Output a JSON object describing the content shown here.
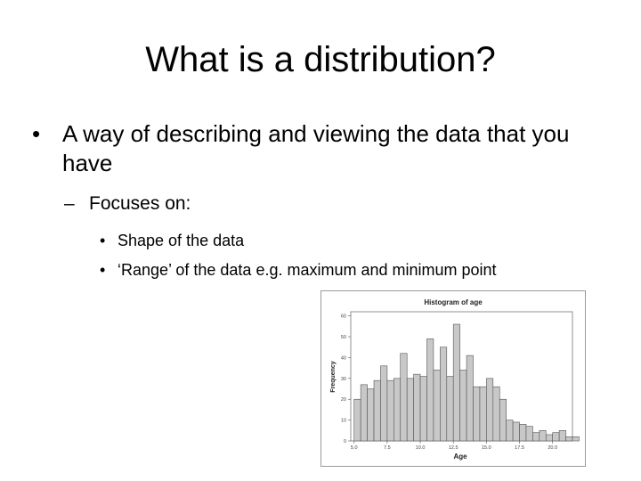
{
  "slide": {
    "title": "What is a distribution?",
    "bullet1": "A way of describing and viewing the data that you have",
    "bullet1_marker": "•",
    "sub_marker": "–",
    "sub_bullet": "Focuses on:",
    "sub_sub_marker": "•",
    "sub_sub_bullets": [
      "Shape of the data",
      "‘Range’ of the data e.g. maximum and minimum point"
    ]
  },
  "chart_data": {
    "type": "bar",
    "title": "Histogram of age",
    "xlabel": "Age",
    "ylabel": "Frequency",
    "xlim": [
      4.75,
      21.5
    ],
    "ylim": [
      0,
      62
    ],
    "xticks": [
      5.0,
      7.5,
      10.0,
      12.5,
      15.0,
      17.5,
      20.0
    ],
    "xtick_labels": [
      "5.0",
      "7.5",
      "10.0",
      "12.5",
      "15.0",
      "17.5",
      "20.0"
    ],
    "yticks": [
      0,
      10,
      20,
      30,
      40,
      50,
      60
    ],
    "bin_width": 0.5,
    "bin_start": 5.0,
    "values": [
      20,
      27,
      25,
      29,
      36,
      29,
      30,
      42,
      30,
      32,
      31,
      49,
      34,
      45,
      31,
      56,
      34,
      41,
      26,
      26,
      30,
      26,
      20,
      10,
      9,
      8,
      7,
      4,
      5,
      3,
      4,
      5,
      2,
      2,
      0,
      2
    ],
    "bar_color": "#c8c8c8",
    "edge_color": "#555555",
    "grid": false
  }
}
